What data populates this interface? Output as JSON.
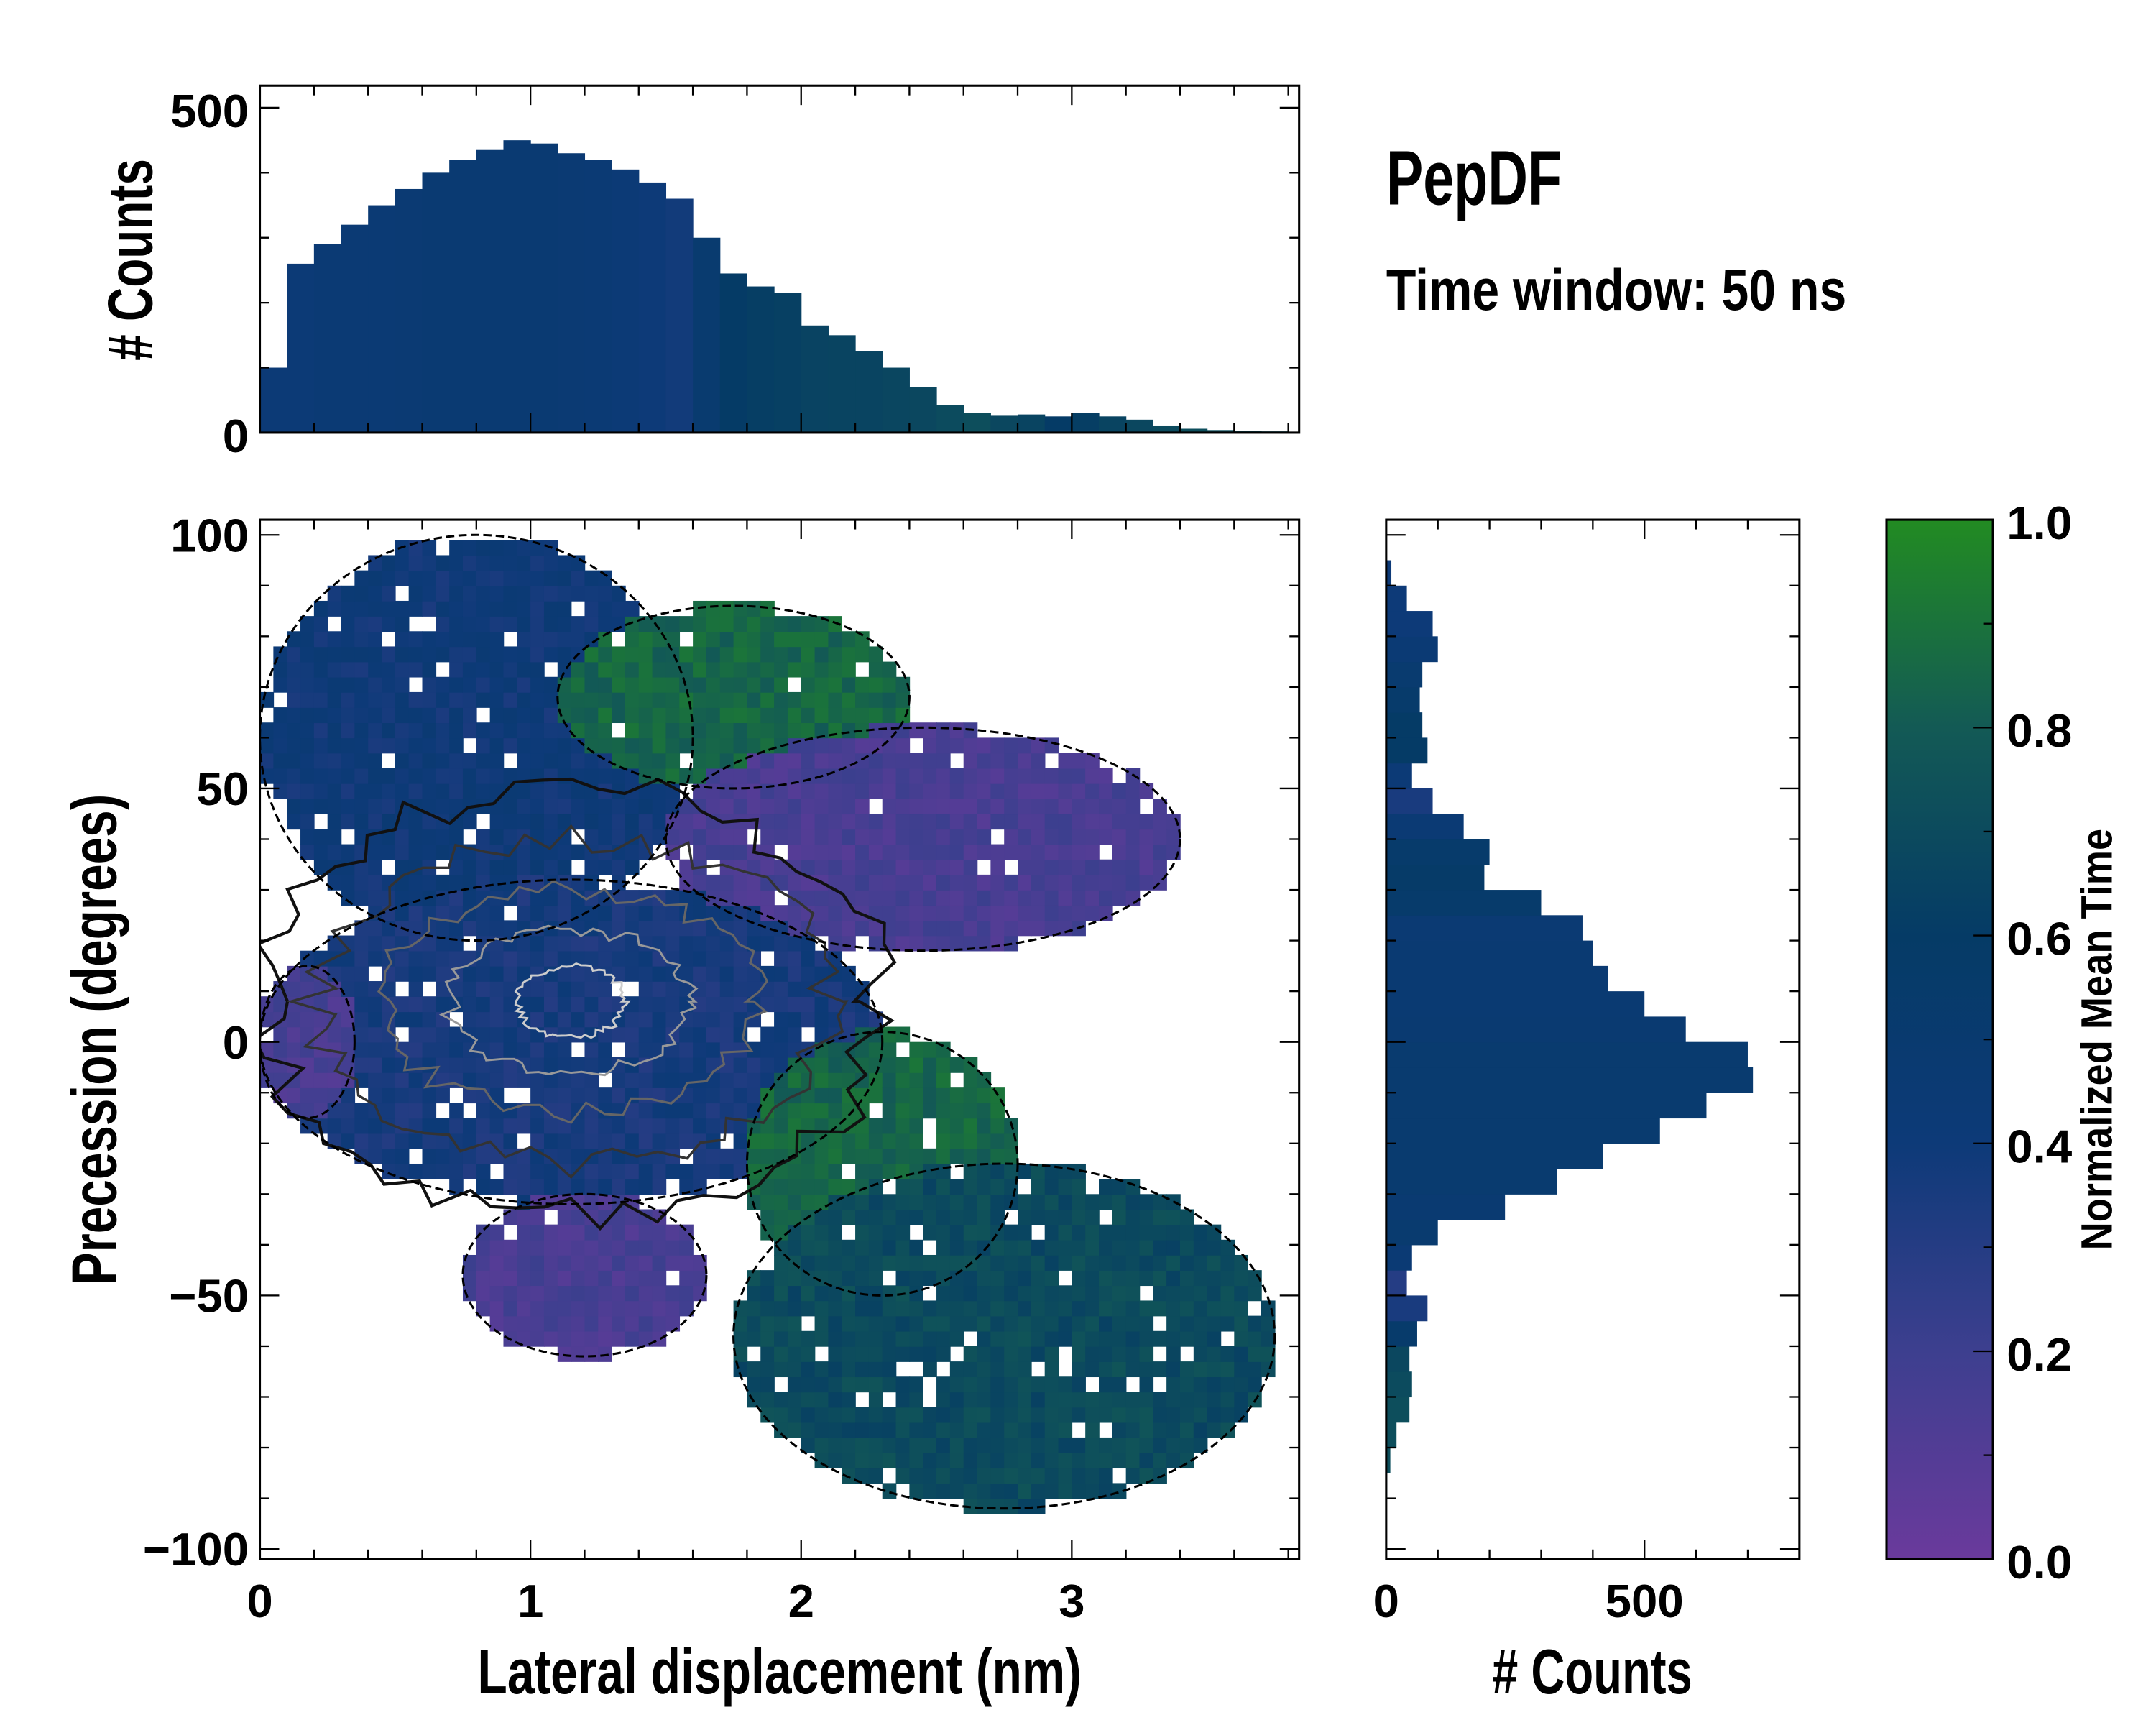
{
  "title": "PepDF",
  "subtitle": "Time window: 50 ns",
  "chart_data": [
    {
      "type": "heatmap",
      "name": "main-2d-histogram",
      "xlabel": "Lateral displacement (nm)",
      "ylabel": "Precession (degrees)",
      "xlim": [
        0,
        3.84
      ],
      "ylim": [
        -102,
        103
      ],
      "xticks": [
        0,
        1,
        2,
        3
      ],
      "xtick_labels": [
        "0",
        "1",
        "2",
        "3"
      ],
      "yticks": [
        100,
        50,
        0,
        -50,
        -100
      ],
      "ytick_labels": [
        "100",
        "50",
        "0",
        "−50",
        "−100"
      ],
      "color_value": "Normalized Mean Time",
      "regions": [
        {
          "label": "upper-left",
          "x": [
            0,
            1.6
          ],
          "y": [
            20,
            100
          ],
          "value": 0.4
        },
        {
          "label": "upper-green",
          "x": [
            1.1,
            2.4
          ],
          "y": [
            50,
            86
          ],
          "value": 0.85
        },
        {
          "label": "upper-right-purple",
          "x": [
            1.5,
            3.4
          ],
          "y": [
            18,
            62
          ],
          "value": 0.15
        },
        {
          "label": "center",
          "x": [
            0,
            2.3
          ],
          "y": [
            -32,
            32
          ],
          "value": 0.36
        },
        {
          "label": "left-purple",
          "x": [
            0,
            0.35
          ],
          "y": [
            -15,
            15
          ],
          "value": 0.15
        },
        {
          "label": "center-green",
          "x": [
            1.8,
            2.8
          ],
          "y": [
            -50,
            2
          ],
          "value": 0.85
        },
        {
          "label": "lower-purple",
          "x": [
            0.75,
            1.65
          ],
          "y": [
            -62,
            -30
          ],
          "value": 0.15
        },
        {
          "label": "lower-right-green",
          "x": [
            1.75,
            3.75
          ],
          "y": [
            -92,
            -24
          ],
          "value": 0.7
        }
      ],
      "contour_center": [
        1.0,
        0
      ],
      "contour_levels": [
        "outer",
        "mid",
        "inner"
      ]
    },
    {
      "type": "bar",
      "name": "top-marginal-histogram",
      "ylabel": "# Counts",
      "ylim": [
        0,
        534
      ],
      "yticks": [
        0,
        500
      ],
      "ytick_labels": [
        "0",
        "500"
      ],
      "bin_width": 0.1,
      "x_start": 0,
      "values": [
        100,
        260,
        290,
        320,
        350,
        375,
        400,
        420,
        435,
        450,
        445,
        430,
        420,
        405,
        385,
        360,
        300,
        245,
        225,
        215,
        165,
        150,
        125,
        100,
        70,
        42,
        30,
        26,
        28,
        25,
        30,
        25,
        20,
        11,
        6,
        4,
        3,
        2
      ],
      "mean_time": [
        0.42,
        0.42,
        0.44,
        0.45,
        0.45,
        0.46,
        0.47,
        0.47,
        0.47,
        0.47,
        0.47,
        0.46,
        0.45,
        0.42,
        0.4,
        0.38,
        0.5,
        0.6,
        0.62,
        0.63,
        0.65,
        0.66,
        0.66,
        0.67,
        0.68,
        0.7,
        0.72,
        0.68,
        0.66,
        0.6,
        0.62,
        0.66,
        0.68,
        0.7,
        0.72,
        0.72,
        0.72,
        0.72
      ]
    },
    {
      "type": "bar",
      "orientation": "horizontal",
      "name": "right-marginal-histogram",
      "xlabel": "# Counts",
      "xlim": [
        0,
        800
      ],
      "xticks": [
        0,
        500
      ],
      "xtick_labels": [
        "0",
        "500"
      ],
      "bin_width": 5,
      "y_start": -100,
      "values": [
        0,
        0,
        2,
        8,
        20,
        45,
        50,
        45,
        60,
        80,
        40,
        50,
        100,
        230,
        330,
        420,
        530,
        620,
        710,
        700,
        580,
        500,
        430,
        400,
        380,
        300,
        190,
        200,
        150,
        90,
        50,
        80,
        70,
        65,
        70,
        100,
        90,
        40,
        10,
        0
      ],
      "mean_time": [
        0.7,
        0.7,
        0.7,
        0.72,
        0.72,
        0.72,
        0.7,
        0.68,
        0.55,
        0.35,
        0.3,
        0.45,
        0.5,
        0.48,
        0.5,
        0.5,
        0.5,
        0.5,
        0.5,
        0.5,
        0.48,
        0.47,
        0.47,
        0.47,
        0.46,
        0.55,
        0.58,
        0.55,
        0.45,
        0.35,
        0.42,
        0.6,
        0.6,
        0.55,
        0.5,
        0.45,
        0.4,
        0.4,
        0.4,
        0.4
      ]
    },
    {
      "type": "colorbar",
      "name": "colorbar",
      "label": "Normalized Mean Time",
      "range": [
        0,
        1
      ],
      "ticks": [
        0,
        0.2,
        0.4,
        0.6,
        0.8,
        1.0
      ],
      "tick_labels": [
        "0.0",
        "0.2",
        "0.4",
        "0.6",
        "0.8",
        "1.0"
      ],
      "colormap": [
        "#6a3a9c",
        "#3d3f8f",
        "#0d3a78",
        "#053b66",
        "#135a55",
        "#228b22"
      ]
    }
  ]
}
